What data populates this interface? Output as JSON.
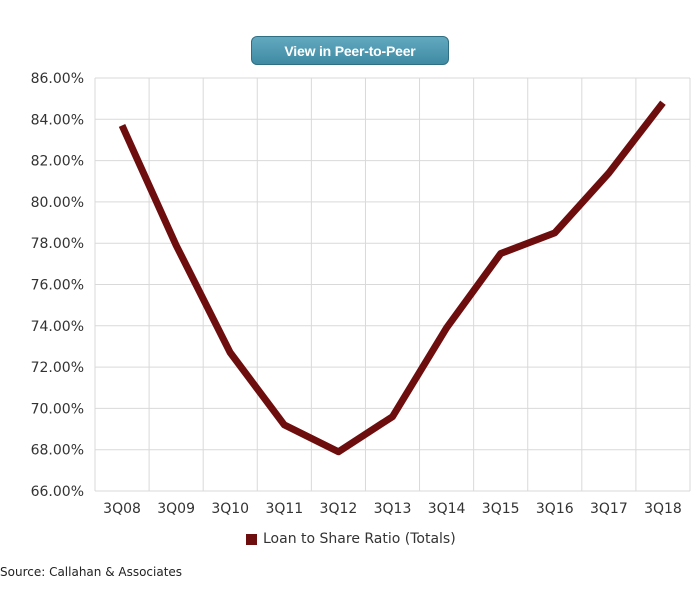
{
  "button": {
    "label": "View in Peer-to-Peer"
  },
  "source": "Source: Callahan & Associates",
  "colors": {
    "series": "#6e0d0d",
    "button": "#4d97ae",
    "grid": "#d9d9d9"
  },
  "chart_data": {
    "type": "line",
    "categories": [
      "3Q08",
      "3Q09",
      "3Q10",
      "3Q11",
      "3Q12",
      "3Q13",
      "3Q14",
      "3Q15",
      "3Q16",
      "3Q17",
      "3Q18"
    ],
    "series": [
      {
        "name": "Loan to Share Ratio (Totals)",
        "values": [
          83.7,
          77.9,
          72.7,
          69.2,
          67.9,
          69.6,
          73.9,
          77.5,
          78.5,
          81.4,
          84.8
        ]
      }
    ],
    "ylim": [
      66,
      86
    ],
    "yticks": [
      "66.00%",
      "68.00%",
      "70.00%",
      "72.00%",
      "74.00%",
      "76.00%",
      "78.00%",
      "80.00%",
      "82.00%",
      "84.00%",
      "86.00%"
    ],
    "ytick_values": [
      66,
      68,
      70,
      72,
      74,
      76,
      78,
      80,
      82,
      84,
      86
    ],
    "grid": true,
    "legend_position": "bottom"
  }
}
